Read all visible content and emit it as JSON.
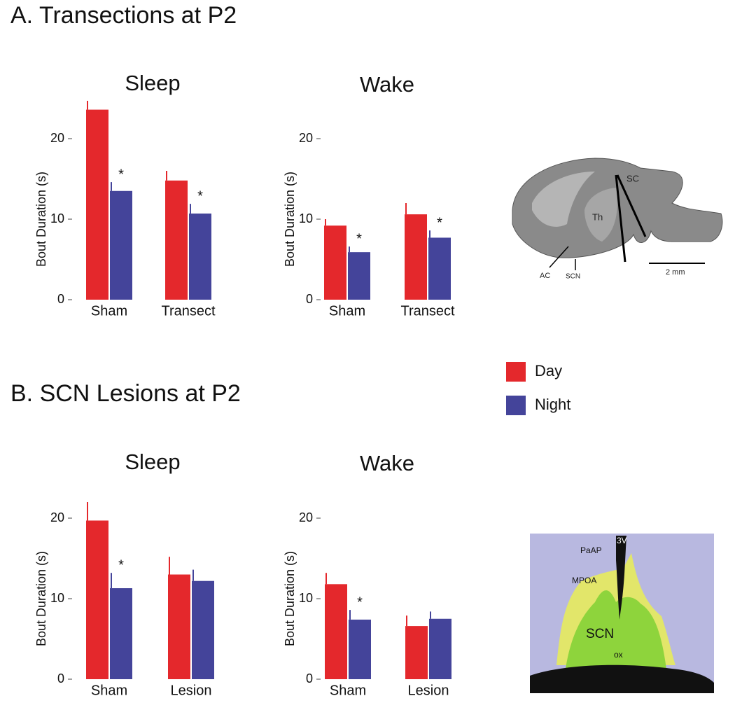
{
  "sections": [
    "A. Transections at P2",
    "B. SCN Lesions at P2"
  ],
  "images": [
    {
      "labels": [
        "SC",
        "Th",
        "AC",
        "SCN",
        "2 mm"
      ]
    },
    {
      "labels": [
        "PaAP",
        "3V",
        "MPOA",
        "SCN",
        "ox"
      ]
    }
  ],
  "chart_data": [
    {
      "type": "bar",
      "title": "Sleep",
      "y_label": "Bout Duration (s)",
      "categories": [
        "Sham",
        "Transect"
      ],
      "series": [
        {
          "name": "Day",
          "color": "#e4282c",
          "values": [
            23.6,
            14.8
          ],
          "errors": [
            1.1,
            1.2
          ]
        },
        {
          "name": "Night",
          "color": "#44449a",
          "values": [
            13.5,
            10.7
          ],
          "errors": [
            1.1,
            1.2
          ]
        }
      ],
      "significance": [
        "*",
        "*"
      ],
      "ylim": [
        0,
        25
      ],
      "yticks": [
        0,
        10,
        20
      ]
    },
    {
      "type": "bar",
      "title": "Wake",
      "y_label": "Bout Duration (s)",
      "categories": [
        "Sham",
        "Transect"
      ],
      "series": [
        {
          "name": "Day",
          "color": "#e4282c",
          "values": [
            9.2,
            10.6
          ],
          "errors": [
            0.8,
            1.4
          ]
        },
        {
          "name": "Night",
          "color": "#44449a",
          "values": [
            5.9,
            7.7
          ],
          "errors": [
            0.7,
            0.9
          ]
        }
      ],
      "significance": [
        "*",
        "*"
      ],
      "ylim": [
        0,
        25
      ],
      "yticks": [
        0,
        10,
        20
      ]
    },
    {
      "type": "bar",
      "title": "Sleep",
      "y_label": "Bout Duration (s)",
      "categories": [
        "Sham",
        "Lesion"
      ],
      "series": [
        {
          "name": "Day",
          "color": "#e4282c",
          "values": [
            19.7,
            13.0
          ],
          "errors": [
            2.3,
            2.2
          ]
        },
        {
          "name": "Night",
          "color": "#44449a",
          "values": [
            11.3,
            12.2
          ],
          "errors": [
            1.9,
            1.4
          ]
        }
      ],
      "significance": [
        "*",
        null
      ],
      "ylim": [
        0,
        25
      ],
      "yticks": [
        0,
        10,
        20
      ]
    },
    {
      "type": "bar",
      "title": "Wake",
      "y_label": "Bout Duration (s)",
      "categories": [
        "Sham",
        "Lesion"
      ],
      "series": [
        {
          "name": "Day",
          "color": "#e4282c",
          "values": [
            11.8,
            6.6
          ],
          "errors": [
            1.4,
            1.3
          ]
        },
        {
          "name": "Night",
          "color": "#44449a",
          "values": [
            7.4,
            7.5
          ],
          "errors": [
            1.2,
            0.9
          ]
        }
      ],
      "significance": [
        "*",
        null
      ],
      "ylim": [
        0,
        25
      ],
      "yticks": [
        0,
        10,
        20
      ]
    }
  ]
}
